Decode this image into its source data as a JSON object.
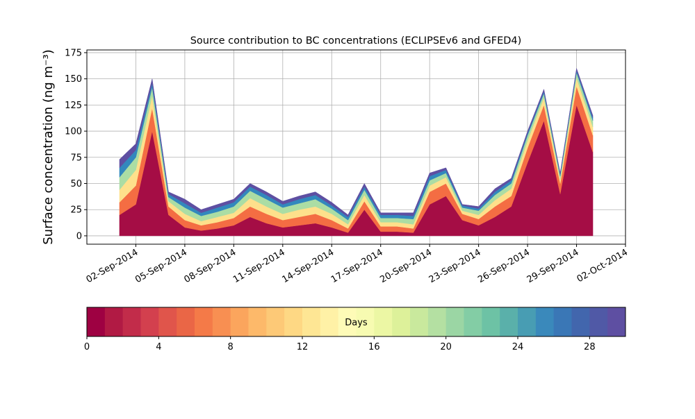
{
  "chart_data": {
    "type": "stacked-area",
    "title": "Source contribution to BC concentrations (ECLIPSEv6 and GFED4)",
    "y_label": "Surface concentration (ng m⁻³)",
    "x": [
      "2014-09-01",
      "2014-09-02",
      "2014-09-03",
      "2014-09-04",
      "2014-09-05",
      "2014-09-06",
      "2014-09-07",
      "2014-09-08",
      "2014-09-09",
      "2014-09-10",
      "2014-09-11",
      "2014-09-12",
      "2014-09-13",
      "2014-09-14",
      "2014-09-15",
      "2014-09-16",
      "2014-09-17",
      "2014-09-18",
      "2014-09-19",
      "2014-09-20",
      "2014-09-21",
      "2014-09-22",
      "2014-09-23",
      "2014-09-24",
      "2014-09-25",
      "2014-09-26",
      "2014-09-27",
      "2014-09-28",
      "2014-09-29",
      "2014-09-30"
    ],
    "series": [
      {
        "color": "#a50d45",
        "values": [
          20,
          30,
          100,
          20,
          8,
          5,
          7,
          10,
          18,
          12,
          8,
          10,
          12,
          8,
          3,
          25,
          4,
          4,
          3,
          30,
          38,
          15,
          10,
          18,
          28,
          70,
          110,
          40,
          125,
          80
        ]
      },
      {
        "color": "#f46d43",
        "values": [
          12,
          18,
          22,
          8,
          7,
          5,
          6,
          7,
          10,
          9,
          7,
          8,
          9,
          7,
          4,
          8,
          5,
          5,
          4,
          12,
          12,
          6,
          6,
          10,
          10,
          14,
          15,
          10,
          18,
          16
        ]
      },
      {
        "color": "#fee08b",
        "values": [
          12,
          15,
          12,
          5,
          6,
          4,
          5,
          5,
          8,
          7,
          6,
          7,
          7,
          6,
          4,
          6,
          4,
          4,
          4,
          6,
          6,
          3,
          4,
          6,
          7,
          7,
          7,
          4,
          8,
          8
        ]
      },
      {
        "color": "#abdda4",
        "values": [
          12,
          12,
          8,
          4,
          6,
          5,
          5,
          6,
          7,
          7,
          6,
          6,
          7,
          5,
          4,
          5,
          4,
          4,
          5,
          5,
          4,
          3,
          4,
          5,
          5,
          5,
          4,
          3,
          5,
          6
        ]
      },
      {
        "color": "#3288bd",
        "values": [
          9,
          7,
          4,
          3,
          4,
          3,
          4,
          4,
          4,
          4,
          3,
          4,
          4,
          3,
          3,
          3,
          3,
          3,
          3,
          4,
          3,
          2,
          2,
          3,
          3,
          2,
          2,
          2,
          2,
          3
        ]
      },
      {
        "color": "#5e4fa2",
        "values": [
          8,
          6,
          4,
          2,
          4,
          3,
          3,
          3,
          3,
          3,
          3,
          3,
          3,
          3,
          2,
          3,
          2,
          2,
          3,
          3,
          2,
          1,
          2,
          3,
          2,
          2,
          2,
          1,
          2,
          2
        ]
      }
    ],
    "xlim": [
      "2014-08-30",
      "2014-10-02"
    ],
    "xticks": [
      {
        "value": "2014-09-02",
        "label": "02-Sep-2014"
      },
      {
        "value": "2014-09-05",
        "label": "05-Sep-2014"
      },
      {
        "value": "2014-09-08",
        "label": "08-Sep-2014"
      },
      {
        "value": "2014-09-11",
        "label": "11-Sep-2014"
      },
      {
        "value": "2014-09-14",
        "label": "14-Sep-2014"
      },
      {
        "value": "2014-09-17",
        "label": "17-Sep-2014"
      },
      {
        "value": "2014-09-20",
        "label": "20-Sep-2014"
      },
      {
        "value": "2014-09-23",
        "label": "23-Sep-2014"
      },
      {
        "value": "2014-09-26",
        "label": "26-Sep-2014"
      },
      {
        "value": "2014-09-29",
        "label": "29-Sep-2014"
      },
      {
        "value": "2014-10-02",
        "label": "02-Oct-2014"
      }
    ],
    "ylim": [
      -8,
      177.6
    ],
    "yticks": [
      0,
      25,
      50,
      75,
      100,
      125,
      150,
      175
    ],
    "grid": true,
    "colorbar": {
      "label": "Days",
      "lim": [
        0,
        30
      ],
      "ticks": [
        0,
        4,
        8,
        12,
        16,
        20,
        24,
        28
      ],
      "colors": [
        "#9e0142",
        "#b11a44",
        "#c22c4a",
        "#d3404e",
        "#e0554b",
        "#ea6646",
        "#f47a48",
        "#f88f52",
        "#fba55d",
        "#fdb96a",
        "#fdc977",
        "#fed884",
        "#fee694",
        "#fff1a6",
        "#fefbb7",
        "#f7fbb1",
        "#ecf7a4",
        "#ddf19a",
        "#c9e99d",
        "#b4e0a2",
        "#9bd6a4",
        "#83cda5",
        "#6dc2a5",
        "#5ab0aa",
        "#489db3",
        "#3a89bb",
        "#3a77b6",
        "#4266ad",
        "#5059a6",
        "#5e4fa2"
      ]
    }
  }
}
